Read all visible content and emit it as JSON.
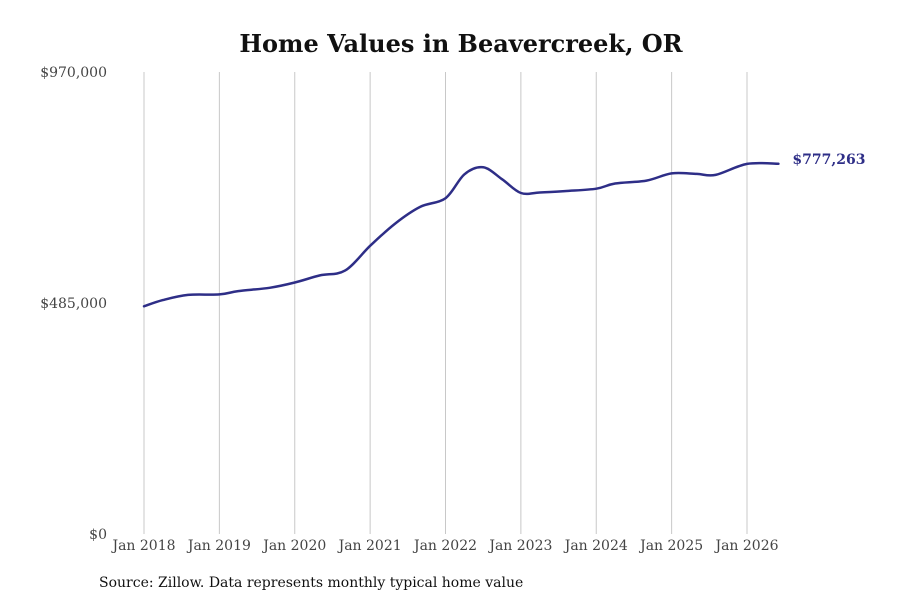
{
  "chart_data": {
    "type": "line",
    "title": "Home Values in Beavercreek, OR",
    "source": "Source: Zillow. Data represents monthly typical home value",
    "xlabel": "",
    "ylabel": "",
    "y_ticks": [
      "$0",
      "$485,000",
      "$970,000"
    ],
    "y_tick_values": [
      0,
      485000,
      970000
    ],
    "ylim": [
      0,
      970000
    ],
    "x_ticks": [
      "Jan 2018",
      "Jan 2019",
      "Jan 2020",
      "Jan 2021",
      "Jan 2022",
      "Jan 2023",
      "Jan 2024",
      "Jan 2025",
      "Jan 2026"
    ],
    "x_tick_values": [
      "2018-01",
      "2019-01",
      "2020-01",
      "2021-01",
      "2022-01",
      "2023-01",
      "2024-01",
      "2025-01",
      "2026-01"
    ],
    "xlim": [
      "2018-01",
      "2026-06"
    ],
    "grid": "vertical",
    "line_color": "#2e2e87",
    "end_label": "$777,263",
    "series": [
      {
        "name": "",
        "points": [
          [
            "2018-01",
            478000
          ],
          [
            "2018-04",
            491000
          ],
          [
            "2018-08",
            502000
          ],
          [
            "2019-01",
            503000
          ],
          [
            "2019-04",
            510000
          ],
          [
            "2019-09",
            517000
          ],
          [
            "2020-01",
            528000
          ],
          [
            "2020-05",
            543000
          ],
          [
            "2020-09",
            553000
          ],
          [
            "2021-01",
            605000
          ],
          [
            "2021-05",
            652000
          ],
          [
            "2021-09",
            687000
          ],
          [
            "2022-01",
            705000
          ],
          [
            "2022-04",
            755000
          ],
          [
            "2022-07",
            770000
          ],
          [
            "2022-10",
            745000
          ],
          [
            "2023-01",
            716000
          ],
          [
            "2023-04",
            717000
          ],
          [
            "2023-08",
            720000
          ],
          [
            "2024-01",
            725000
          ],
          [
            "2024-04",
            736000
          ],
          [
            "2024-09",
            742000
          ],
          [
            "2025-01",
            757000
          ],
          [
            "2025-05",
            756000
          ],
          [
            "2025-08",
            754000
          ],
          [
            "2026-01",
            777000
          ],
          [
            "2026-06",
            777263
          ]
        ]
      }
    ]
  }
}
